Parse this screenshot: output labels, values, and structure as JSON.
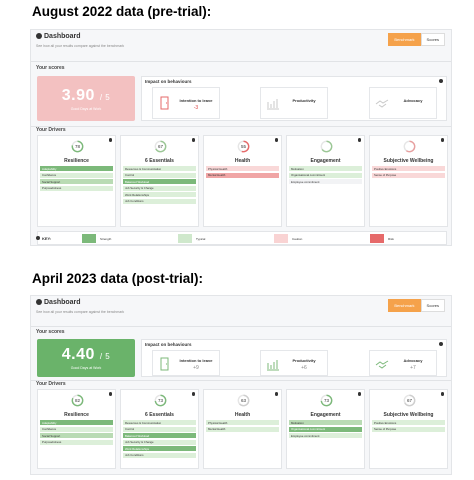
{
  "colors": {
    "accent": "#f5a24b",
    "score_red": "#f3c1c1",
    "score_green": "#6ab36a",
    "strength": "#7cb97a",
    "typical": "#cfe8cc",
    "caution": "#f9d3d3",
    "risk": "#e66a6a"
  },
  "panels": [
    {
      "heading": "August 2022 data (pre-trial):",
      "dashboard_title": "Dashboard",
      "subtitle": "See how all your results compare against the benchmark",
      "toggle": {
        "benchmark": "Benchmark",
        "scores": "Scores"
      },
      "your_scores": "Your scores",
      "score": {
        "value": "3.90",
        "unit": "/ 5",
        "label": "Good Days at Work",
        "tone": "red"
      },
      "impact_title": "Impact on behaviours",
      "impacts": [
        {
          "name": "Intention to leave",
          "value": "-3",
          "icon": "door-icon",
          "tone": "neg"
        },
        {
          "name": "Productivity",
          "value": "",
          "icon": "bar-chart-icon",
          "tone": "neutral"
        },
        {
          "name": "Advocacy",
          "value": "",
          "icon": "handshake-icon",
          "tone": "neutral"
        }
      ],
      "drivers_title": "Your Drivers",
      "drivers": [
        {
          "name": "Resilience",
          "score": "78",
          "ring": "#7cb97a",
          "fill": 0.78,
          "rows": [
            {
              "label": "Adaptability",
              "value": "",
              "tone": "gd"
            },
            {
              "label": "Confidence",
              "value": "",
              "tone": "gl"
            },
            {
              "label": "Social Support",
              "value": "",
              "tone": "gm"
            },
            {
              "label": "Purposefulness",
              "value": "",
              "tone": "gl"
            }
          ]
        },
        {
          "name": "6 Essentials",
          "score": "67",
          "ring": "#9bc795",
          "fill": 0.67,
          "rows": [
            {
              "label": "Resources & Communication",
              "value": "",
              "tone": "gl"
            },
            {
              "label": "Control",
              "value": "",
              "tone": "gl"
            },
            {
              "label": "Balanced Workload",
              "value": "",
              "tone": "gd"
            },
            {
              "label": "Job Security & Change",
              "value": "",
              "tone": "gl"
            },
            {
              "label": "Work Relationships",
              "value": "",
              "tone": "gl"
            },
            {
              "label": "Job Conditions",
              "value": "",
              "tone": "gl"
            }
          ]
        },
        {
          "name": "Health",
          "score": "55",
          "ring": "#e66a6a",
          "fill": 0.55,
          "rows": [
            {
              "label": "Physical Health",
              "value": "",
              "tone": "rl"
            },
            {
              "label": "Mental Health",
              "value": "",
              "tone": "rm"
            }
          ]
        },
        {
          "name": "Engagement",
          "score": "",
          "ring": "#9bc795",
          "fill": 0.65,
          "rows": [
            {
              "label": "Motivation",
              "value": "",
              "tone": "gl"
            },
            {
              "label": "Organisational commitment",
              "value": "",
              "tone": "gl"
            },
            {
              "label": "Employee commitment",
              "value": "",
              "tone": "n"
            }
          ]
        },
        {
          "name": "Subjective Wellbeing",
          "score": "",
          "ring": "#e8a0a0",
          "fill": 0.6,
          "rows": [
            {
              "label": "Positive Emotions",
              "value": "",
              "tone": "rl"
            },
            {
              "label": "Sense of Purpose",
              "value": "",
              "tone": "rl"
            }
          ]
        }
      ],
      "key": {
        "label": "KEY:",
        "items": [
          {
            "label": "Strength",
            "color": "#7cb97a"
          },
          {
            "label": "Typical",
            "color": "#cfe8cc"
          },
          {
            "label": "Caution",
            "color": "#f9d3d3"
          },
          {
            "label": "Risk",
            "color": "#e66a6a"
          }
        ]
      }
    },
    {
      "heading": "April 2023 data (post-trial):",
      "dashboard_title": "Dashboard",
      "subtitle": "See how all your results compare against the benchmark",
      "toggle": {
        "benchmark": "Benchmark",
        "scores": "Scores"
      },
      "your_scores": "Your scores",
      "score": {
        "value": "4.40",
        "unit": "/ 5",
        "label": "Good Days at Work",
        "tone": "green"
      },
      "impact_title": "Impact on behaviours",
      "impacts": [
        {
          "name": "Intention to leave",
          "value": "+9",
          "icon": "door-icon",
          "tone": "neutral"
        },
        {
          "name": "Productivity",
          "value": "+6",
          "icon": "bar-chart-icon",
          "tone": "neutral"
        },
        {
          "name": "Advocacy",
          "value": "+7",
          "icon": "handshake-icon",
          "tone": "neutral"
        }
      ],
      "drivers_title": "Your Drivers",
      "drivers": [
        {
          "name": "Resilience",
          "score": "82",
          "ring": "#7cb97a",
          "fill": 0.82,
          "rows": [
            {
              "label": "Adaptability",
              "value": "",
              "tone": "gd"
            },
            {
              "label": "Confidence",
              "value": "",
              "tone": "gl"
            },
            {
              "label": "Social Support",
              "value": "",
              "tone": "gm"
            },
            {
              "label": "Purposefulness",
              "value": "",
              "tone": "gl"
            }
          ]
        },
        {
          "name": "6 Essentials",
          "score": "73",
          "ring": "#7cb97a",
          "fill": 0.73,
          "rows": [
            {
              "label": "Resources & Communication",
              "value": "",
              "tone": "gl"
            },
            {
              "label": "Control",
              "value": "",
              "tone": "gl"
            },
            {
              "label": "Balanced Workload",
              "value": "",
              "tone": "gd"
            },
            {
              "label": "Job Security & Change",
              "value": "",
              "tone": "gl"
            },
            {
              "label": "Work Relationships",
              "value": "",
              "tone": "gd"
            },
            {
              "label": "Job Conditions",
              "value": "",
              "tone": "gl"
            }
          ]
        },
        {
          "name": "Health",
          "score": "63",
          "ring": "#cfcfcf",
          "fill": 0.63,
          "rows": [
            {
              "label": "Physical Health",
              "value": "",
              "tone": "gl"
            },
            {
              "label": "Mental Health",
              "value": "",
              "tone": "gl"
            }
          ]
        },
        {
          "name": "Engagement",
          "score": "73",
          "ring": "#7cb97a",
          "fill": 0.73,
          "rows": [
            {
              "label": "Motivation",
              "value": "",
              "tone": "gm"
            },
            {
              "label": "Organisational commitment",
              "value": "",
              "tone": "gd"
            },
            {
              "label": "Employee commitment",
              "value": "",
              "tone": "gl"
            }
          ]
        },
        {
          "name": "Subjective Wellbeing",
          "score": "67",
          "ring": "#cfcfcf",
          "fill": 0.67,
          "rows": [
            {
              "label": "Positive Emotions",
              "value": "",
              "tone": "gl"
            },
            {
              "label": "Sense of Purpose",
              "value": "",
              "tone": "gl"
            }
          ]
        }
      ]
    }
  ]
}
